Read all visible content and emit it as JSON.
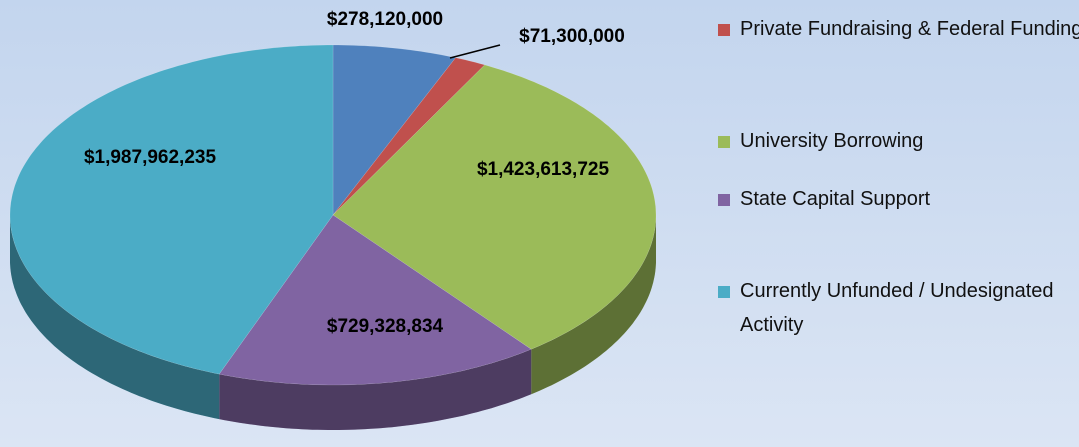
{
  "chart_data": {
    "type": "pie",
    "categories": [
      null,
      "Private Fundraising & Federal Funding",
      "University Borrowing",
      "State Capital Support",
      "Currently Unfunded / Undesignated Activity"
    ],
    "values": [
      278120000,
      71300000,
      1423613725,
      729328834,
      1987962235
    ],
    "value_labels": [
      "$278,120,000",
      "$71,300,000",
      "$1,423,613,725",
      "$729,328,834",
      "$1,987,962,235"
    ],
    "colors": [
      "#4f81bd",
      "#c0504d",
      "#9bbb59",
      "#8064a2",
      "#4bacc6"
    ],
    "legend": "right"
  }
}
